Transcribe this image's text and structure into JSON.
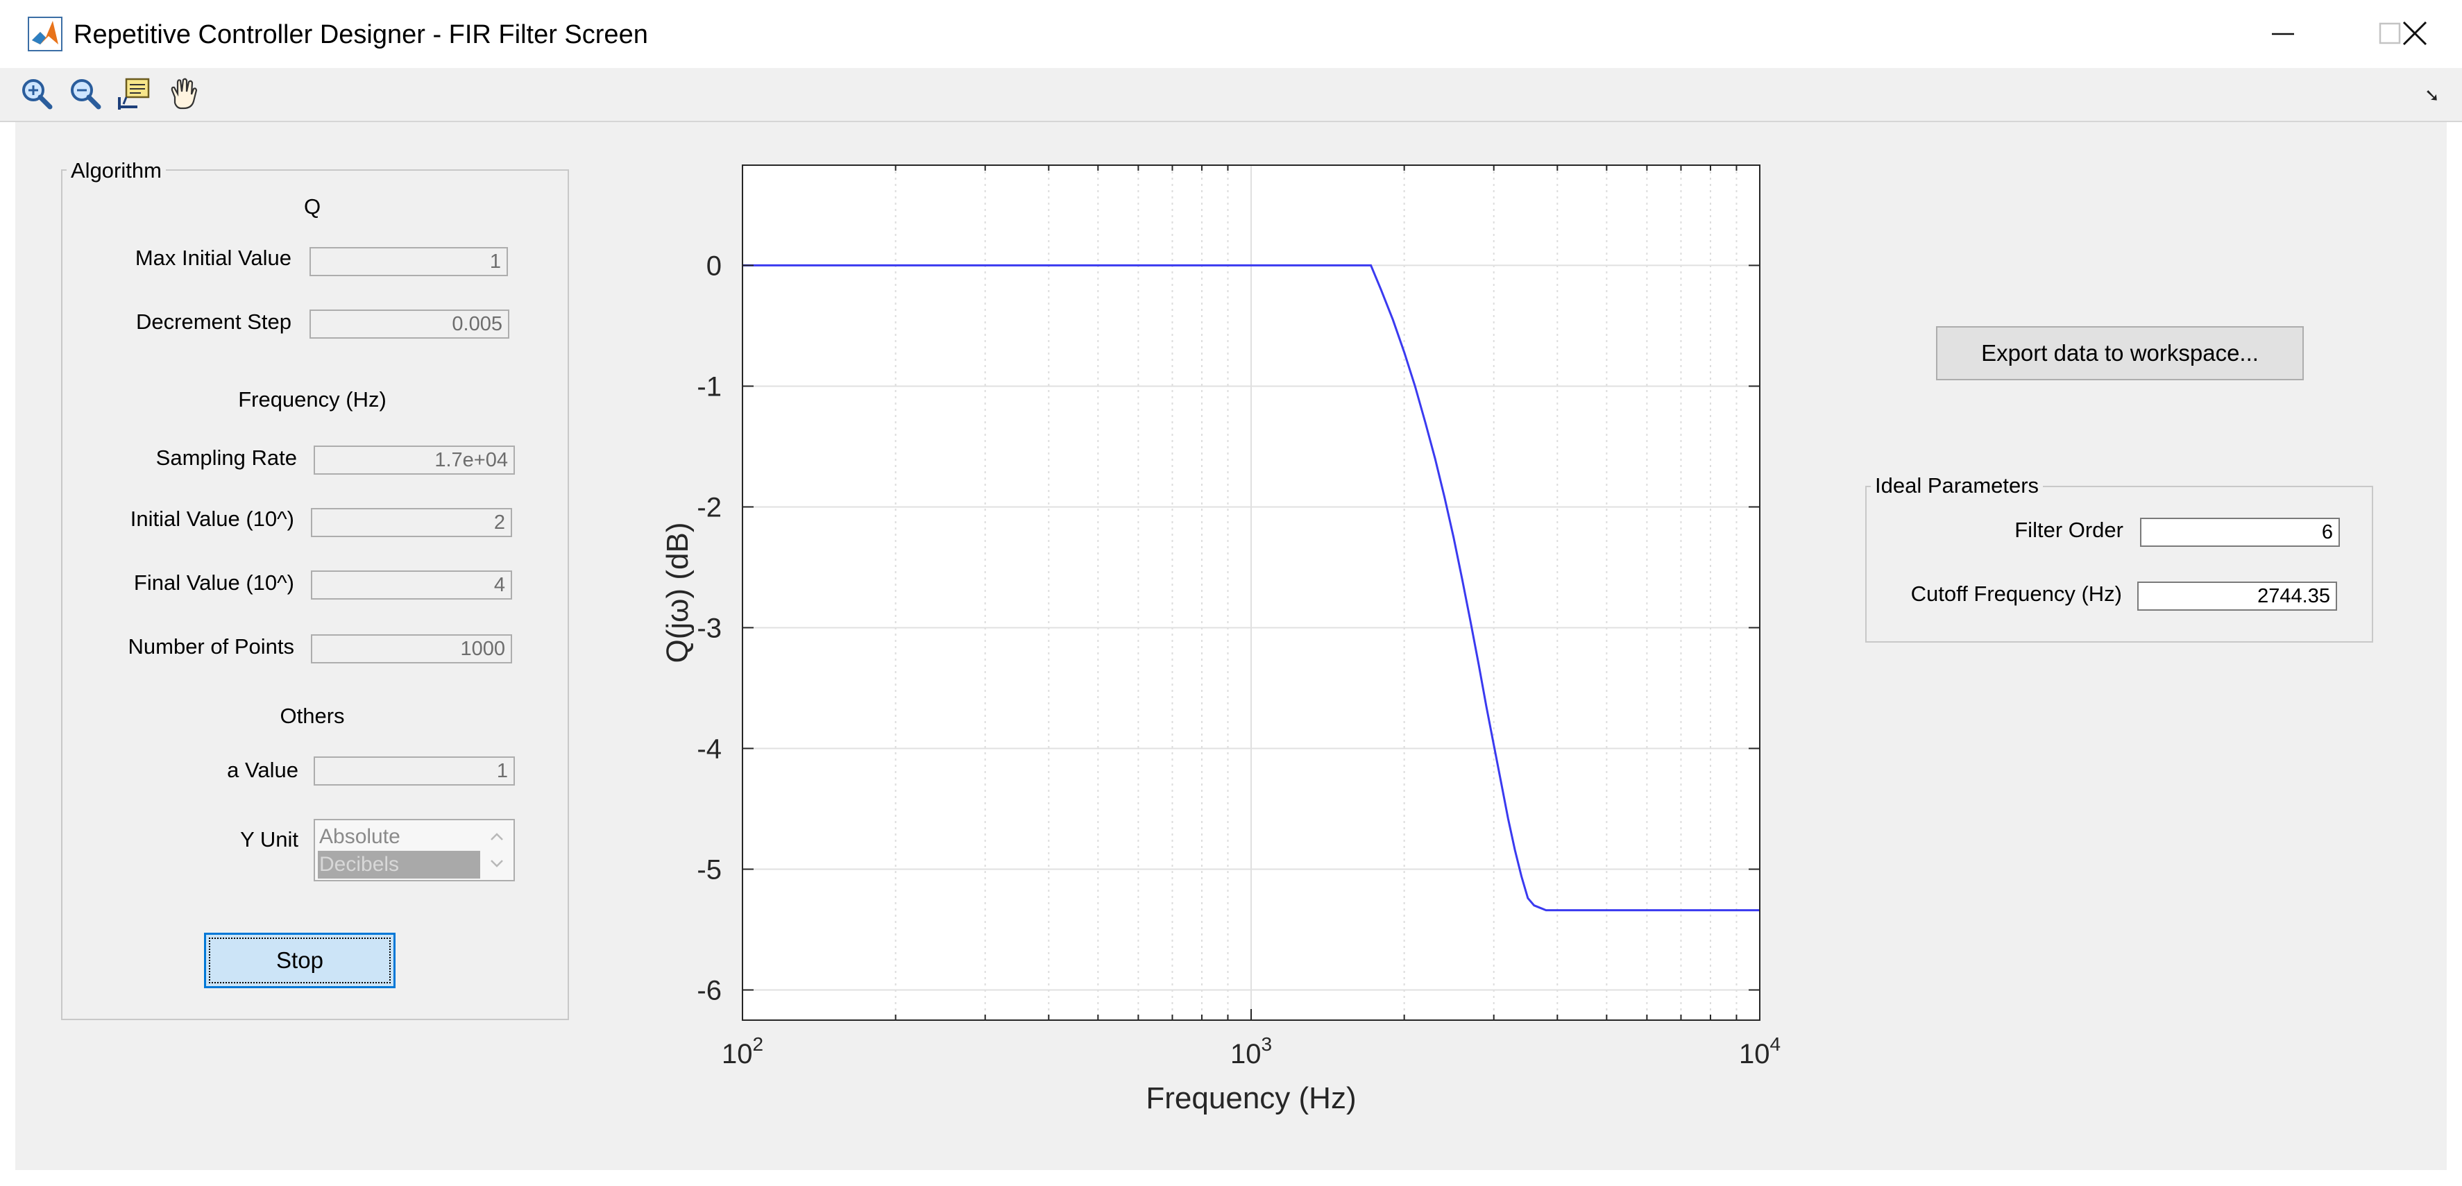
{
  "window": {
    "title": "Repetitive Controller Designer - FIR Filter Screen",
    "icon": "matlab-icon",
    "controls": [
      "minimize-icon",
      "maximize-icon",
      "close-icon"
    ]
  },
  "toolbar": {
    "tools": [
      "zoom-in-icon",
      "zoom-out-icon",
      "data-cursor-icon",
      "pan-hand-icon"
    ],
    "dock_glyph": "➘"
  },
  "algorithm": {
    "title": "Algorithm",
    "q_section": "Q",
    "max_initial_value": {
      "label": "Max Initial Value",
      "value": "1"
    },
    "decrement_step": {
      "label": "Decrement Step",
      "value": "0.005"
    },
    "frequency_section": "Frequency (Hz)",
    "sampling_rate": {
      "label": "Sampling Rate",
      "value": "1.7e+04"
    },
    "initial_value": {
      "label": "Initial Value (10^)",
      "value": "2"
    },
    "final_value": {
      "label": "Final Value (10^)",
      "value": "4"
    },
    "number_of_points": {
      "label": "Number of Points",
      "value": "1000"
    },
    "others_section": "Others",
    "a_value": {
      "label": "a Value",
      "value": "1"
    },
    "y_unit": {
      "label": "Y Unit",
      "options": [
        "Absolute",
        "Decibels"
      ],
      "selected": "Decibels"
    },
    "stop_label": "Stop"
  },
  "export_label": "Export data to workspace...",
  "ideal_parameters": {
    "title": "Ideal Parameters",
    "filter_order": {
      "label": "Filter Order",
      "value": "6"
    },
    "cutoff_frequency": {
      "label": "Cutoff Frequency (Hz)",
      "value": "2744.35"
    }
  },
  "chart_data": {
    "type": "line",
    "title": "",
    "xlabel": "Frequency (Hz)",
    "ylabel": "Q(jω) (dB)",
    "xscale": "log",
    "xlim": [
      100,
      10000
    ],
    "ylim": [
      -6.25,
      0.83
    ],
    "xticks": [
      100,
      1000,
      10000
    ],
    "xtick_labels": [
      {
        "base": "10",
        "exp": "2"
      },
      {
        "base": "10",
        "exp": "3"
      },
      {
        "base": "10",
        "exp": "4"
      }
    ],
    "yticks": [
      0,
      -1,
      -2,
      -3,
      -4,
      -5,
      -6
    ],
    "grid": true,
    "minor_grid": true,
    "line_color": "#3a3af0",
    "series": [
      {
        "x": [
          100,
          500,
          1000,
          1500,
          1720,
          1800,
          1900,
          2000,
          2100,
          2200,
          2300,
          2400,
          2500,
          2600,
          2700,
          2800,
          2900,
          3000,
          3100,
          3200,
          3300,
          3400,
          3500,
          3600,
          3700,
          3800,
          4000,
          5000,
          7000,
          10000
        ],
        "y": [
          0,
          0,
          0,
          0,
          0,
          -0.2,
          -0.45,
          -0.72,
          -1.0,
          -1.3,
          -1.6,
          -1.92,
          -2.25,
          -2.6,
          -2.95,
          -3.3,
          -3.65,
          -3.97,
          -4.28,
          -4.58,
          -4.84,
          -5.06,
          -5.24,
          -5.3,
          -5.32,
          -5.34,
          -5.34,
          -5.34,
          -5.34,
          -5.34
        ]
      }
    ]
  }
}
